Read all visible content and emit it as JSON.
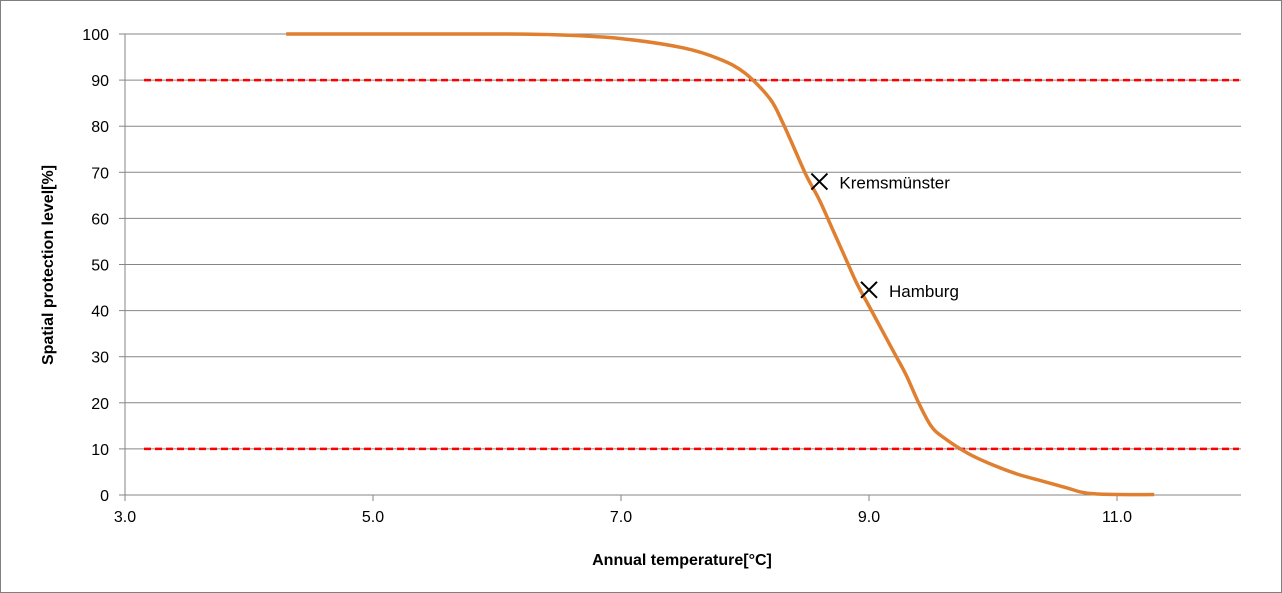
{
  "chart_data": {
    "type": "line",
    "xlabel": "Annual temperature[°C]",
    "ylabel": "Spatial protection level[%]",
    "xlim": [
      3.0,
      12.0
    ],
    "ylim": [
      0,
      100
    ],
    "x_ticks": [
      3.0,
      5.0,
      7.0,
      9.0,
      11.0
    ],
    "x_tick_labels": [
      "3.0",
      "5.0",
      "7.0",
      "9.0",
      "11.0"
    ],
    "y_ticks": [
      0,
      10,
      20,
      30,
      40,
      50,
      60,
      70,
      80,
      90,
      100
    ],
    "y_tick_labels": [
      "0",
      "10",
      "20",
      "30",
      "40",
      "50",
      "60",
      "70",
      "80",
      "90",
      "100"
    ],
    "grid": true,
    "legend": "none",
    "series": [
      {
        "color": "#e07f2f",
        "x": [
          4.3,
          5.0,
          6.0,
          6.5,
          7.0,
          7.5,
          7.8,
          8.0,
          8.2,
          8.3,
          8.4,
          8.5,
          8.6,
          8.7,
          8.8,
          8.9,
          9.0,
          9.1,
          9.2,
          9.3,
          9.4,
          9.5,
          9.6,
          9.8,
          10.0,
          10.2,
          10.4,
          10.6,
          10.7,
          10.8,
          11.0,
          11.3
        ],
        "y": [
          100,
          100,
          100,
          99.8,
          99,
          97,
          94.5,
          91.5,
          86,
          81,
          75,
          69,
          64,
          58,
          52,
          46,
          41,
          36,
          31,
          26,
          20,
          15,
          12.5,
          9,
          6.5,
          4.5,
          3,
          1.5,
          0.7,
          0.3,
          0.1,
          0.1
        ]
      }
    ],
    "reference_lines": [
      {
        "y": 90,
        "color": "#ff0000",
        "style": "dashed"
      },
      {
        "y": 10,
        "color": "#ff0000",
        "style": "dashed"
      }
    ],
    "annotations": [
      {
        "label": "Kremsmünster",
        "x": 8.6,
        "y": 68,
        "marker": "x"
      },
      {
        "label": "Hamburg",
        "x": 9.0,
        "y": 44.5,
        "marker": "x"
      }
    ]
  }
}
